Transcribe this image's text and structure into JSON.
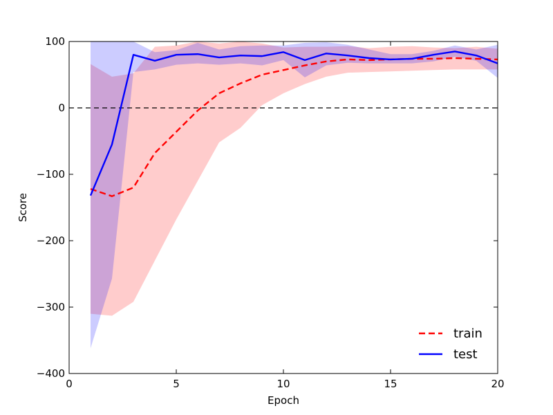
{
  "chart_data": {
    "type": "line",
    "title": "",
    "xlabel": "Epoch",
    "ylabel": "Score",
    "xlim": [
      0,
      20
    ],
    "ylim": [
      -400,
      100
    ],
    "xticks": [
      0,
      5,
      10,
      15,
      20
    ],
    "yticks": [
      -400,
      -300,
      -200,
      -100,
      0,
      100
    ],
    "xtick_labels": [
      "0",
      "5",
      "10",
      "15",
      "20"
    ],
    "ytick_labels": [
      "−400",
      "−300",
      "−200",
      "−100",
      "0",
      "100"
    ],
    "grid": false,
    "reference_line": {
      "y": 0,
      "style": "dashed",
      "color": "#000000"
    },
    "legend_position": "lower-right",
    "x": [
      1,
      2,
      3,
      4,
      5,
      6,
      7,
      8,
      9,
      10,
      11,
      12,
      13,
      14,
      15,
      16,
      17,
      18,
      19,
      20
    ],
    "series": [
      {
        "name": "train",
        "color": "#ff0000",
        "line_style": "dashed",
        "values": [
          -122,
          -133,
          -120,
          -68,
          -36,
          -4,
          22,
          37,
          50,
          57,
          64,
          70,
          73,
          72,
          73,
          74,
          74,
          75,
          74,
          73
        ],
        "band_lower": [
          -310,
          -313,
          -292,
          -230,
          -168,
          -110,
          -52,
          -30,
          4,
          22,
          36,
          47,
          53,
          54,
          55,
          56,
          57,
          58,
          58,
          58
        ],
        "band_upper": [
          66,
          47,
          52,
          92,
          94,
          100,
          97,
          100,
          97,
          91,
          92,
          92,
          93,
          90,
          92,
          93,
          91,
          90,
          92,
          89
        ],
        "band_color": "#ff0000",
        "band_opacity": 0.2
      },
      {
        "name": "test",
        "color": "#0000ff",
        "line_style": "solid",
        "values": [
          -132,
          -55,
          80,
          71,
          80,
          81,
          76,
          79,
          78,
          84,
          72,
          82,
          79,
          75,
          73,
          74,
          80,
          85,
          79,
          67
        ],
        "band_lower": [
          -362,
          -257,
          54,
          58,
          65,
          67,
          65,
          67,
          64,
          72,
          46,
          64,
          68,
          67,
          67,
          67,
          70,
          77,
          71,
          45
        ],
        "band_upper": [
          100,
          100,
          100,
          84,
          87,
          98,
          88,
          93,
          94,
          94,
          98,
          99,
          95,
          88,
          81,
          81,
          86,
          94,
          88,
          95
        ],
        "band_color": "#0000ff",
        "band_opacity": 0.2
      }
    ]
  }
}
